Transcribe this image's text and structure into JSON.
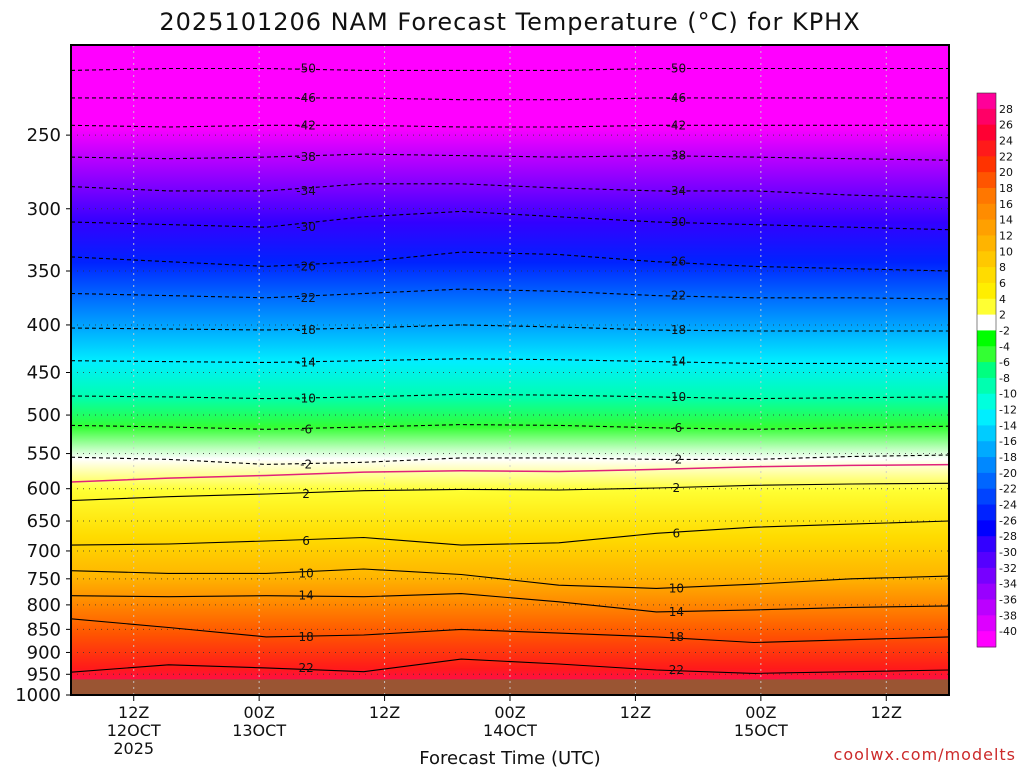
{
  "chart_data": {
    "type": "heatmap",
    "title": "2025101206 NAM Forecast Temperature (°C) for KPHX",
    "xlabel": "Forecast Time (UTC)",
    "ylabel": "",
    "y_scale": "log-pressure",
    "y_reversed": true,
    "ylim": [
      1000,
      200
    ],
    "yticks": [
      250,
      300,
      350,
      400,
      450,
      500,
      550,
      600,
      650,
      700,
      750,
      800,
      850,
      900,
      950,
      1000
    ],
    "x_ticks": [
      {
        "hours": 6,
        "line1": "12Z",
        "line2": "12OCT",
        "line3": "2025"
      },
      {
        "hours": 18,
        "line1": "00Z",
        "line2": "13OCT",
        "line3": ""
      },
      {
        "hours": 30,
        "line1": "12Z",
        "line2": "",
        "line3": ""
      },
      {
        "hours": 42,
        "line1": "00Z",
        "line2": "14OCT",
        "line3": ""
      },
      {
        "hours": 54,
        "line1": "12Z",
        "line2": "",
        "line3": ""
      },
      {
        "hours": 66,
        "line1": "00Z",
        "line2": "15OCT",
        "line3": ""
      },
      {
        "hours": 78,
        "line1": "12Z",
        "line2": "",
        "line3": ""
      }
    ],
    "xlim_hours": [
      0,
      84
    ],
    "grid": true,
    "colorbar": {
      "labels": [
        "28",
        "26",
        "24",
        "22",
        "20",
        "18",
        "16",
        "14",
        "12",
        "10",
        "8",
        "6",
        "4",
        "2",
        "-2",
        "-4",
        "-6",
        "-8",
        "-10",
        "-12",
        "-14",
        "-16",
        "-18",
        "-20",
        "-22",
        "-24",
        "-26",
        "-28",
        "-30",
        "-32",
        "-34",
        "-36",
        "-38",
        "-40"
      ],
      "colors": [
        "#ff0099",
        "#ff0066",
        "#ff0033",
        "#ff1a1a",
        "#ff3300",
        "#ff5500",
        "#ff7700",
        "#ff8c00",
        "#ffa000",
        "#ffb400",
        "#ffc800",
        "#ffdc00",
        "#ffee00",
        "#ffff33",
        "#ffffff",
        "#00ff00",
        "#33ff33",
        "#00ff80",
        "#00ffb0",
        "#00ffdd",
        "#00eeff",
        "#00ccff",
        "#00aaff",
        "#0088ff",
        "#0066ff",
        "#0044ff",
        "#0022ff",
        "#0000ff",
        "#3300ff",
        "#5500ff",
        "#7700ff",
        "#9900ff",
        "#bb00ff",
        "#dd00ff",
        "#ff00ff"
      ]
    },
    "series": [
      {
        "name": "-50",
        "pressure": [
          213,
          212,
          212,
          213,
          213,
          213,
          212,
          212,
          212,
          212
        ]
      },
      {
        "name": "-46",
        "pressure": [
          228,
          228,
          228,
          228,
          229,
          229,
          228,
          228,
          228,
          228
        ]
      },
      {
        "name": "-42",
        "pressure": [
          244,
          245,
          244,
          244,
          245,
          245,
          244,
          244,
          244,
          244
        ]
      },
      {
        "name": "-38",
        "pressure": [
          264,
          265,
          264,
          262,
          263,
          264,
          263,
          264,
          265,
          266
        ]
      },
      {
        "name": "-34",
        "pressure": [
          284,
          287,
          287,
          282,
          282,
          285,
          287,
          287,
          290,
          292
        ]
      },
      {
        "name": "-30",
        "pressure": [
          310,
          312,
          314,
          306,
          302,
          306,
          310,
          312,
          314,
          316
        ]
      },
      {
        "name": "-26",
        "pressure": [
          338,
          342,
          346,
          342,
          334,
          336,
          342,
          346,
          348,
          350
        ]
      },
      {
        "name": "-22",
        "pressure": [
          370,
          372,
          374,
          370,
          366,
          368,
          372,
          374,
          374,
          375
        ]
      },
      {
        "name": "-18",
        "pressure": [
          403,
          404,
          405,
          403,
          400,
          402,
          405,
          406,
          406,
          406
        ]
      },
      {
        "name": "-14",
        "pressure": [
          437,
          438,
          439,
          437,
          435,
          436,
          438,
          440,
          440,
          440
        ]
      },
      {
        "name": "-10",
        "pressure": [
          477,
          478,
          480,
          478,
          475,
          476,
          478,
          480,
          479,
          478
        ]
      },
      {
        "name": "-6",
        "pressure": [
          513,
          515,
          518,
          515,
          512,
          513,
          516,
          518,
          516,
          514
        ]
      },
      {
        "name": "-2",
        "pressure": [
          555,
          558,
          565,
          562,
          556,
          556,
          558,
          558,
          554,
          552
        ]
      },
      {
        "name": "2",
        "pressure": [
          618,
          612,
          608,
          603,
          601,
          602,
          599,
          595,
          593,
          592
        ]
      },
      {
        "name": "6",
        "pressure": [
          690,
          688,
          683,
          677,
          690,
          686,
          670,
          660,
          655,
          650
        ]
      },
      {
        "name": "10",
        "pressure": [
          735,
          740,
          740,
          732,
          742,
          762,
          768,
          760,
          750,
          745
        ]
      },
      {
        "name": "14",
        "pressure": [
          782,
          784,
          782,
          784,
          778,
          794,
          814,
          810,
          805,
          802
        ]
      },
      {
        "name": "18",
        "pressure": [
          828,
          846,
          866,
          862,
          850,
          858,
          866,
          878,
          872,
          866
        ]
      },
      {
        "name": "22",
        "pressure": [
          945,
          928,
          935,
          944,
          915,
          926,
          940,
          948,
          944,
          940
        ]
      }
    ]
  },
  "credit": "coolwx.com/modelts"
}
